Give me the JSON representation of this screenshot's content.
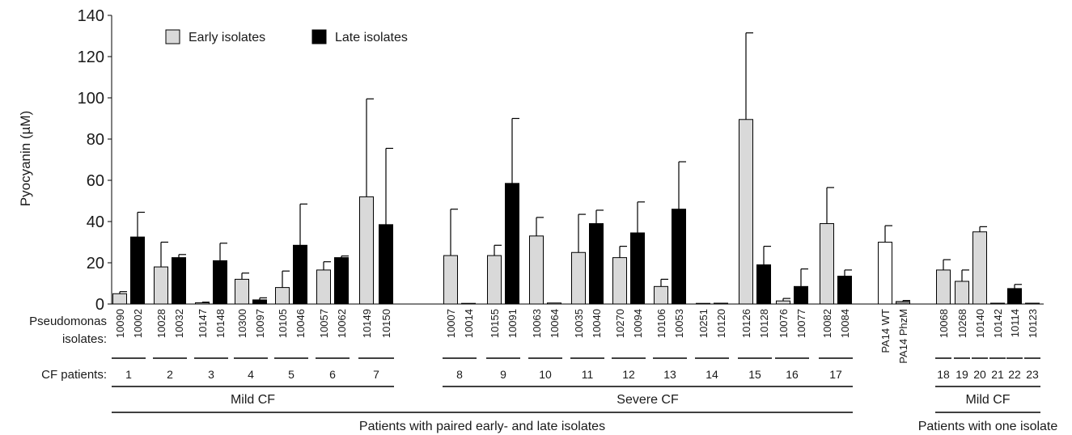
{
  "chart_data": {
    "type": "bar",
    "ylabel": "Pyocyanin (µM)",
    "ylim": [
      0,
      140
    ],
    "yticks": [
      0,
      20,
      40,
      60,
      80,
      100,
      120,
      140
    ],
    "legend": {
      "placement": "top-left",
      "entries": [
        {
          "label": "Early isolates",
          "color": "#d9d9d9"
        },
        {
          "label": "Late isolates",
          "color": "#000000"
        }
      ]
    },
    "row_labels": {
      "isolates": "Pseudomonas\nisolates:",
      "patients": "CF patients:"
    },
    "colors": {
      "early": "#d9d9d9",
      "late": "#000000",
      "control_wt": "#ffffff",
      "control_phzm": "#999999"
    },
    "bars": [
      {
        "isolate": "10090",
        "group": "early",
        "value": 5,
        "error": 1
      },
      {
        "isolate": "10002",
        "group": "late",
        "value": 32.5,
        "error": 12
      },
      {
        "isolate": "10028",
        "group": "early",
        "value": 18,
        "error": 12
      },
      {
        "isolate": "10032",
        "group": "late",
        "value": 22.5,
        "error": 1.5
      },
      {
        "isolate": "10147",
        "group": "early",
        "value": 0.6,
        "error": 0.3
      },
      {
        "isolate": "10148",
        "group": "late",
        "value": 21,
        "error": 8.5
      },
      {
        "isolate": "10300",
        "group": "early",
        "value": 12,
        "error": 3
      },
      {
        "isolate": "10097",
        "group": "late",
        "value": 2,
        "error": 1
      },
      {
        "isolate": "10105",
        "group": "early",
        "value": 8,
        "error": 8
      },
      {
        "isolate": "10046",
        "group": "late",
        "value": 28.5,
        "error": 20
      },
      {
        "isolate": "10057",
        "group": "early",
        "value": 16.5,
        "error": 4
      },
      {
        "isolate": "10062",
        "group": "late",
        "value": 22.5,
        "error": 0.8
      },
      {
        "isolate": "10149",
        "group": "early",
        "value": 52,
        "error": 47.5
      },
      {
        "isolate": "10150",
        "group": "late",
        "value": 38.5,
        "error": 37
      },
      {
        "isolate": "10007",
        "group": "early",
        "value": 23.5,
        "error": 22.5
      },
      {
        "isolate": "10014",
        "group": "early",
        "value": 0.3,
        "error": 0
      },
      {
        "isolate": "10155",
        "group": "early",
        "value": 23.5,
        "error": 5
      },
      {
        "isolate": "10091",
        "group": "late",
        "value": 58.5,
        "error": 31.5
      },
      {
        "isolate": "10063",
        "group": "early",
        "value": 33,
        "error": 9
      },
      {
        "isolate": "10064",
        "group": "early",
        "value": 0.5,
        "error": 0
      },
      {
        "isolate": "10035",
        "group": "early",
        "value": 25,
        "error": 18.5
      },
      {
        "isolate": "10040",
        "group": "late",
        "value": 39,
        "error": 6.5
      },
      {
        "isolate": "10270",
        "group": "early",
        "value": 22.5,
        "error": 5.5
      },
      {
        "isolate": "10094",
        "group": "late",
        "value": 34.5,
        "error": 15
      },
      {
        "isolate": "10106",
        "group": "early",
        "value": 8.5,
        "error": 3.5
      },
      {
        "isolate": "10053",
        "group": "late",
        "value": 46,
        "error": 23
      },
      {
        "isolate": "10251",
        "group": "early",
        "value": 0,
        "error": 0
      },
      {
        "isolate": "10120",
        "group": "early",
        "value": 0.4,
        "error": 0
      },
      {
        "isolate": "10126",
        "group": "early",
        "value": 89.5,
        "error": 42
      },
      {
        "isolate": "10128",
        "group": "late",
        "value": 19,
        "error": 9
      },
      {
        "isolate": "10076",
        "group": "early",
        "value": 1.5,
        "error": 1.2
      },
      {
        "isolate": "10077",
        "group": "late",
        "value": 8.5,
        "error": 8.5
      },
      {
        "isolate": "10082",
        "group": "early",
        "value": 39,
        "error": 17.5
      },
      {
        "isolate": "10084",
        "group": "late",
        "value": 13.5,
        "error": 3
      },
      {
        "isolate": "PA14 WT",
        "group": "control_wt",
        "value": 30,
        "error": 8
      },
      {
        "isolate": "PA14 PhzM",
        "group": "control_phzm",
        "value": 1.2,
        "error": 0.5
      },
      {
        "isolate": "10068",
        "group": "early",
        "value": 16.5,
        "error": 5
      },
      {
        "isolate": "10268",
        "group": "early",
        "value": 11,
        "error": 5.5
      },
      {
        "isolate": "10140",
        "group": "early",
        "value": 35,
        "error": 2.5
      },
      {
        "isolate": "10142",
        "group": "early",
        "value": 0.4,
        "error": 0
      },
      {
        "isolate": "10114",
        "group": "late",
        "value": 7.5,
        "error": 2
      },
      {
        "isolate": "10123",
        "group": "early",
        "value": 0.4,
        "error": 0
      }
    ],
    "patients": [
      {
        "label": "1",
        "from": 0,
        "to": 1
      },
      {
        "label": "2",
        "from": 2,
        "to": 3
      },
      {
        "label": "3",
        "from": 4,
        "to": 5
      },
      {
        "label": "4",
        "from": 6,
        "to": 7
      },
      {
        "label": "5",
        "from": 8,
        "to": 9
      },
      {
        "label": "6",
        "from": 10,
        "to": 11
      },
      {
        "label": "7",
        "from": 12,
        "to": 13
      },
      {
        "label": "8",
        "from": 14,
        "to": 15
      },
      {
        "label": "9",
        "from": 16,
        "to": 17
      },
      {
        "label": "10",
        "from": 18,
        "to": 19
      },
      {
        "label": "11",
        "from": 20,
        "to": 21
      },
      {
        "label": "12",
        "from": 22,
        "to": 23
      },
      {
        "label": "13",
        "from": 24,
        "to": 25
      },
      {
        "label": "14",
        "from": 26,
        "to": 27
      },
      {
        "label": "15",
        "from": 28,
        "to": 29
      },
      {
        "label": "16",
        "from": 30,
        "to": 31
      },
      {
        "label": "17",
        "from": 32,
        "to": 33
      },
      {
        "label": "18",
        "from": 36,
        "to": 36
      },
      {
        "label": "19",
        "from": 37,
        "to": 37
      },
      {
        "label": "20",
        "from": 38,
        "to": 38
      },
      {
        "label": "21",
        "from": 39,
        "to": 39
      },
      {
        "label": "22",
        "from": 40,
        "to": 40
      },
      {
        "label": "23",
        "from": 41,
        "to": 41
      }
    ],
    "severity_groups": [
      {
        "label": "Mild CF",
        "from": 0,
        "to": 13
      },
      {
        "label": "Severe CF",
        "from": 14,
        "to": 33
      },
      {
        "label": "Mild CF",
        "from": 36,
        "to": 41
      }
    ],
    "cohort_groups": [
      {
        "label": "Patients with paired early- and late isolates",
        "from": 0,
        "to": 33
      },
      {
        "label": "Patients with one isolate",
        "from": 36,
        "to": 41
      }
    ]
  }
}
